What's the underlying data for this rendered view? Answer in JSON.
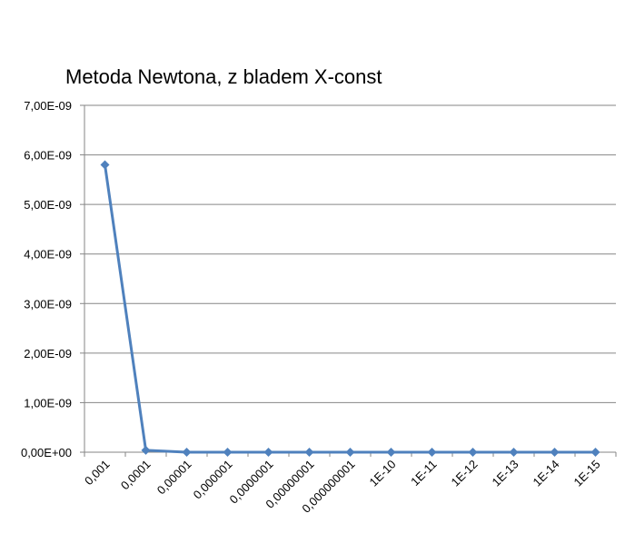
{
  "chart_data": {
    "type": "line",
    "title": "Metoda Newtona, z bladem X-const",
    "xlabel": "",
    "ylabel": "",
    "categories": [
      "0,001",
      "0,0001",
      "0,00001",
      "0,000001",
      "0,0000001",
      "0,00000001",
      "0,000000001",
      "1E-10",
      "1E-11",
      "1E-12",
      "1E-13",
      "1E-14",
      "1E-15"
    ],
    "series": [
      {
        "values": [
          5.8e-09,
          4e-11,
          0,
          0,
          0,
          0,
          0,
          0,
          0,
          0,
          0,
          0,
          0
        ],
        "color": "#4F81BD",
        "marker": "diamond"
      }
    ],
    "ylim": [
      0,
      7e-09
    ],
    "yticks": [
      0,
      1e-09,
      2e-09,
      3e-09,
      4e-09,
      5e-09,
      6e-09,
      7e-09
    ],
    "ytick_labels": [
      "0,00E+00",
      "1,00E-09",
      "2,00E-09",
      "3,00E-09",
      "4,00E-09",
      "5,00E-09",
      "6,00E-09",
      "7,00E-09"
    ],
    "grid": "horizontal",
    "legend": "none",
    "gridline_color": "#868686"
  }
}
